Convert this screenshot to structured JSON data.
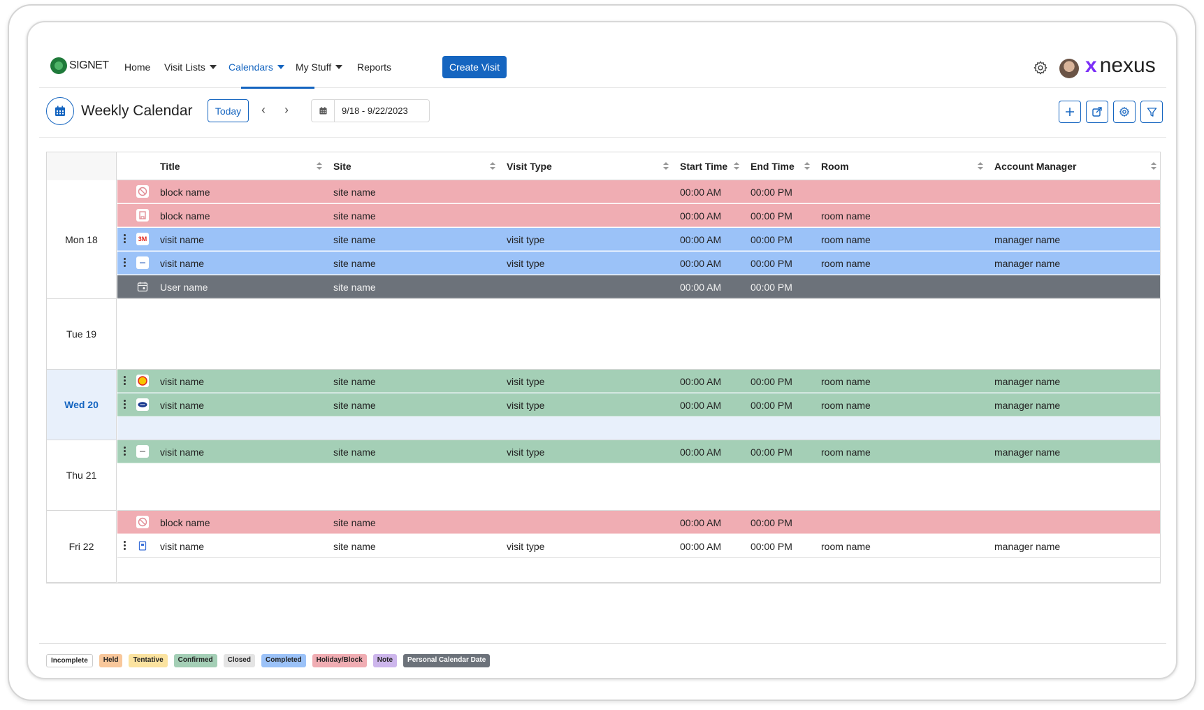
{
  "nav": {
    "brand_left": "SIGNET",
    "items": [
      {
        "label": "Home"
      },
      {
        "label": "Visit Lists"
      },
      {
        "label": "Calendars"
      },
      {
        "label": "My Stuff"
      },
      {
        "label": "Reports"
      }
    ],
    "create_label": "Create Visit",
    "brand_right": "nexus"
  },
  "header": {
    "title": "Weekly Calendar",
    "today_label": "Today",
    "date_range": "9/18 - 9/22/2023"
  },
  "table": {
    "columns": [
      "Title",
      "Site",
      "Visit Type",
      "Start Time",
      "End Time",
      "Room",
      "Account Manager"
    ],
    "days": [
      {
        "label": "Mon 18"
      },
      {
        "label": "Tue 19"
      },
      {
        "label": "Wed 20"
      },
      {
        "label": "Thu 21"
      },
      {
        "label": "Fri 22"
      }
    ],
    "rows": [
      {
        "title": "block name",
        "site": "site name",
        "type": "",
        "start": "00:00 AM",
        "end": "00:00 PM",
        "room": "",
        "manager": ""
      },
      {
        "title": "block name",
        "site": "site name",
        "type": "",
        "start": "00:00 AM",
        "end": "00:00 PM",
        "room": "room name",
        "manager": ""
      },
      {
        "title": "visit name",
        "site": "site name",
        "type": "visit type",
        "start": "00:00 AM",
        "end": "00:00 PM",
        "room": "room name",
        "manager": "manager name",
        "logo": "3M"
      },
      {
        "title": "visit name",
        "site": "site name",
        "type": "visit type",
        "start": "00:00 AM",
        "end": "00:00 PM",
        "room": "room name",
        "manager": "manager name"
      },
      {
        "title": "User name",
        "site": "site name",
        "type": "",
        "start": "00:00 AM",
        "end": "00:00 PM",
        "room": "",
        "manager": ""
      },
      {
        "title": "visit name",
        "site": "site name",
        "type": "visit type",
        "start": "00:00 AM",
        "end": "00:00 PM",
        "room": "room name",
        "manager": "manager name"
      },
      {
        "title": "visit name",
        "site": "site name",
        "type": "visit type",
        "start": "00:00 AM",
        "end": "00:00 PM",
        "room": "room name",
        "manager": "manager name"
      },
      {
        "title": "visit name",
        "site": "site name",
        "type": "visit type",
        "start": "00:00 AM",
        "end": "00:00 PM",
        "room": "room name",
        "manager": "manager name"
      },
      {
        "title": "block name",
        "site": "site name",
        "type": "",
        "start": "00:00 AM",
        "end": "00:00 PM",
        "room": "",
        "manager": ""
      },
      {
        "title": "visit name",
        "site": "site name",
        "type": "visit type",
        "start": "00:00 AM",
        "end": "00:00 PM",
        "room": "room name",
        "manager": "manager name"
      }
    ]
  },
  "legend": [
    {
      "label": "Incomplete",
      "color": "#ffffff"
    },
    {
      "label": "Held",
      "color": "#f8c79b"
    },
    {
      "label": "Tentative",
      "color": "#fbe3a0"
    },
    {
      "label": "Confirmed",
      "color": "#a4cfb6"
    },
    {
      "label": "Closed",
      "color": "#e4e4e4"
    },
    {
      "label": "Completed",
      "color": "#9bc2f8"
    },
    {
      "label": "Holiday/Block",
      "color": "#f0adb3"
    },
    {
      "label": "Note",
      "color": "#cdb6ec"
    },
    {
      "label": "Personal Calendar Date",
      "color": "#6c727a"
    }
  ],
  "colors": {
    "accent": "#1565c0",
    "block": "#f0adb3",
    "completed": "#9bc2f8",
    "confirmed": "#a4cfb6",
    "personal": "#6c727a",
    "today": "#e8f0fb"
  }
}
